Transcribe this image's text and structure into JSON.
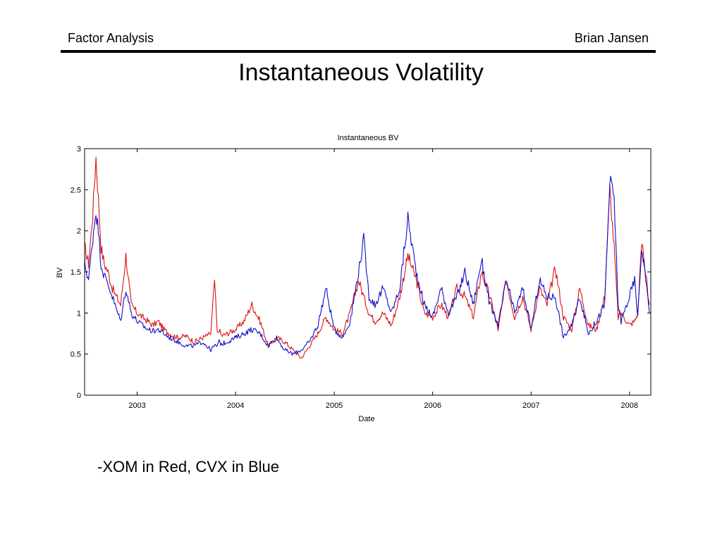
{
  "header": {
    "left": "Factor Analysis",
    "right": "Brian Jansen"
  },
  "slide_title": "Instantaneous Volatility",
  "caption": "-XOM in Red, CVX in Blue",
  "colors": {
    "xom": "#dd1111",
    "cvx": "#1010c8"
  },
  "chart_data": {
    "type": "line",
    "title": "Instantaneous BV",
    "xlabel": "Date",
    "ylabel": "BV",
    "ylim": [
      0,
      3
    ],
    "xlim": [
      "2002-06-20",
      "2008-03-20"
    ],
    "yticks": [
      0,
      0.5,
      1,
      1.5,
      2,
      2.5,
      3
    ],
    "ytick_labels": [
      "0",
      "0.5",
      "1",
      "1.5",
      "2",
      "2.5",
      "3"
    ],
    "xticks": [
      "2003-01-01",
      "2004-01-01",
      "2005-01-01",
      "2006-01-01",
      "2007-01-01",
      "2008-01-01"
    ],
    "xtick_labels": [
      "2003",
      "2004",
      "2005",
      "2006",
      "2007",
      "2008"
    ],
    "grid": false,
    "series": [
      {
        "color": "#dd1111",
        "x": [
          "2002-06-20",
          "2002-07-05",
          "2002-07-20",
          "2002-08-01",
          "2002-08-10",
          "2002-08-20",
          "2002-09-01",
          "2002-09-15",
          "2002-10-01",
          "2002-10-15",
          "2002-11-01",
          "2002-11-20",
          "2002-12-10",
          "2003-01-01",
          "2003-01-20",
          "2003-02-10",
          "2003-03-01",
          "2003-03-20",
          "2003-04-10",
          "2003-05-01",
          "2003-06-01",
          "2003-07-01",
          "2003-08-01",
          "2003-09-01",
          "2003-10-01",
          "2003-10-15",
          "2003-10-25",
          "2003-11-01",
          "2003-11-10",
          "2003-12-01",
          "2004-01-01",
          "2004-02-01",
          "2004-03-01",
          "2004-04-01",
          "2004-05-01",
          "2004-06-01",
          "2004-07-01",
          "2004-08-01",
          "2004-09-01",
          "2004-10-01",
          "2004-11-01",
          "2004-12-01",
          "2005-01-01",
          "2005-02-01",
          "2005-03-01",
          "2005-04-01",
          "2005-04-20",
          "2005-05-10",
          "2005-06-01",
          "2005-07-01",
          "2005-08-01",
          "2005-09-01",
          "2005-10-01",
          "2005-11-01",
          "2005-12-01",
          "2006-01-01",
          "2006-02-01",
          "2006-03-01",
          "2006-04-01",
          "2006-05-01",
          "2006-06-01",
          "2006-07-01",
          "2006-08-01",
          "2006-09-01",
          "2006-10-01",
          "2006-11-01",
          "2006-12-01",
          "2007-01-01",
          "2007-02-01",
          "2007-03-01",
          "2007-04-01",
          "2007-05-01",
          "2007-06-01",
          "2007-07-01",
          "2007-08-01",
          "2007-09-01",
          "2007-10-01",
          "2007-10-20",
          "2007-11-05",
          "2007-11-20",
          "2007-12-01",
          "2008-01-01",
          "2008-01-20",
          "2008-02-01",
          "2008-02-15",
          "2008-03-01",
          "2008-03-15"
        ],
        "values": [
          1.8,
          1.6,
          2.2,
          2.9,
          2.4,
          1.8,
          1.6,
          1.5,
          1.3,
          1.2,
          1.1,
          1.7,
          1.1,
          1.0,
          0.95,
          0.9,
          0.85,
          0.9,
          0.8,
          0.75,
          0.7,
          0.72,
          0.65,
          0.7,
          0.75,
          1.4,
          0.75,
          0.8,
          0.72,
          0.75,
          0.8,
          0.9,
          1.1,
          0.9,
          0.6,
          0.7,
          0.65,
          0.55,
          0.45,
          0.6,
          0.75,
          0.95,
          0.8,
          0.75,
          1.0,
          1.4,
          1.2,
          1.0,
          0.9,
          1.0,
          0.85,
          1.2,
          1.7,
          1.4,
          1.0,
          0.95,
          1.1,
          0.95,
          1.3,
          1.2,
          0.95,
          1.5,
          1.2,
          0.8,
          1.4,
          0.95,
          1.2,
          0.8,
          1.3,
          1.1,
          1.55,
          0.95,
          0.8,
          1.3,
          0.85,
          0.8,
          1.2,
          2.5,
          1.8,
          0.95,
          1.0,
          0.85,
          0.9,
          1.0,
          1.9,
          1.4,
          1.1
        ]
      },
      {
        "color": "#1010c8",
        "x": [
          "2002-06-20",
          "2002-07-05",
          "2002-07-20",
          "2002-08-01",
          "2002-08-10",
          "2002-08-20",
          "2002-09-01",
          "2002-09-15",
          "2002-10-01",
          "2002-10-15",
          "2002-11-01",
          "2002-11-20",
          "2002-12-10",
          "2003-01-01",
          "2003-01-20",
          "2003-02-10",
          "2003-03-01",
          "2003-03-20",
          "2003-04-10",
          "2003-05-01",
          "2003-06-01",
          "2003-07-01",
          "2003-08-01",
          "2003-09-01",
          "2003-10-01",
          "2003-10-15",
          "2003-10-25",
          "2003-11-01",
          "2003-11-10",
          "2003-12-01",
          "2004-01-01",
          "2004-02-01",
          "2004-03-01",
          "2004-04-01",
          "2004-05-01",
          "2004-06-01",
          "2004-07-01",
          "2004-08-01",
          "2004-09-01",
          "2004-10-01",
          "2004-11-01",
          "2004-12-01",
          "2005-01-01",
          "2005-02-01",
          "2005-03-01",
          "2005-04-01",
          "2005-04-20",
          "2005-05-10",
          "2005-06-01",
          "2005-07-01",
          "2005-08-01",
          "2005-09-01",
          "2005-10-01",
          "2005-11-01",
          "2005-12-01",
          "2006-01-01",
          "2006-02-01",
          "2006-03-01",
          "2006-04-01",
          "2006-05-01",
          "2006-06-01",
          "2006-07-01",
          "2006-08-01",
          "2006-09-01",
          "2006-10-01",
          "2006-11-01",
          "2006-12-01",
          "2007-01-01",
          "2007-02-01",
          "2007-03-01",
          "2007-04-01",
          "2007-05-01",
          "2007-06-01",
          "2007-07-01",
          "2007-08-01",
          "2007-09-01",
          "2007-10-01",
          "2007-10-20",
          "2007-11-05",
          "2007-11-20",
          "2007-12-01",
          "2008-01-01",
          "2008-01-20",
          "2008-02-01",
          "2008-02-15",
          "2008-03-01",
          "2008-03-15"
        ],
        "values": [
          1.6,
          1.4,
          1.9,
          2.25,
          2.0,
          1.6,
          1.45,
          1.35,
          1.2,
          1.05,
          0.9,
          1.3,
          1.0,
          0.9,
          0.85,
          0.8,
          0.78,
          0.8,
          0.75,
          0.7,
          0.65,
          0.6,
          0.6,
          0.65,
          0.55,
          0.6,
          0.6,
          0.65,
          0.62,
          0.65,
          0.7,
          0.75,
          0.8,
          0.75,
          0.6,
          0.7,
          0.55,
          0.5,
          0.55,
          0.65,
          0.85,
          1.3,
          0.8,
          0.7,
          0.9,
          1.5,
          1.9,
          1.2,
          1.1,
          1.3,
          1.0,
          1.3,
          2.15,
          1.5,
          1.1,
          0.95,
          1.3,
          1.0,
          1.2,
          1.5,
          1.1,
          1.65,
          1.1,
          0.85,
          1.4,
          1.0,
          1.3,
          0.8,
          1.4,
          1.2,
          1.2,
          0.7,
          0.85,
          1.2,
          0.75,
          0.9,
          1.1,
          2.6,
          2.4,
          1.1,
          0.9,
          1.2,
          1.4,
          0.95,
          1.8,
          1.5,
          1.0
        ]
      }
    ]
  }
}
